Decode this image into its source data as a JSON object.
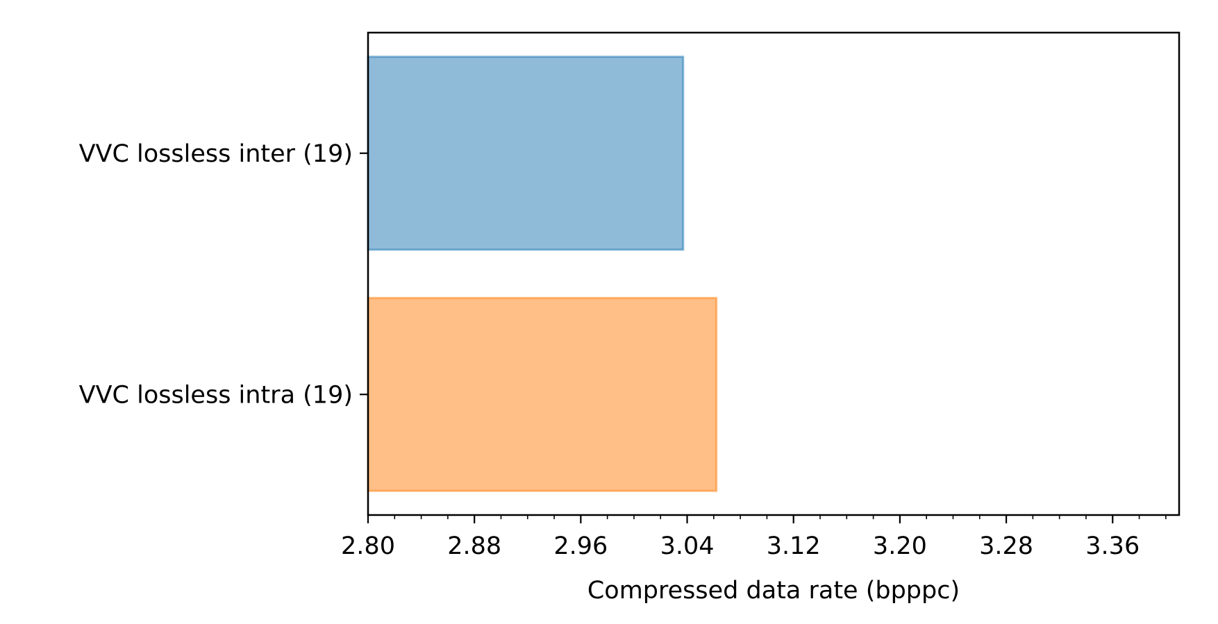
{
  "chart_data": {
    "type": "bar",
    "orientation": "horizontal",
    "categories": [
      "VVC lossless inter (19)",
      "VVC lossless intra (19)"
    ],
    "values": [
      3.037,
      3.062
    ],
    "colors": [
      "#1f77b4",
      "#ff7f0e"
    ],
    "xlabel": "Compressed data rate (bpppc)",
    "ylabel": "",
    "xlim": [
      2.8,
      3.41
    ],
    "xticks": [
      "2.80",
      "2.88",
      "2.96",
      "3.04",
      "3.12",
      "3.20",
      "3.28",
      "3.36"
    ],
    "grid": false,
    "legend": "none"
  }
}
